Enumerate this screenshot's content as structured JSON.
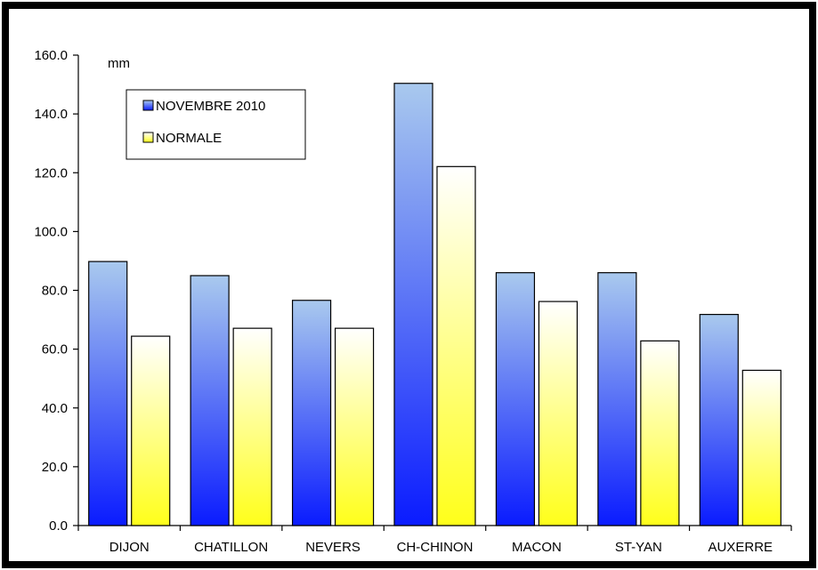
{
  "chart_data": {
    "type": "bar",
    "ylabel": "mm",
    "ylim": [
      0,
      160
    ],
    "yticks": [
      "0.0",
      "20.0",
      "40.0",
      "60.0",
      "80.0",
      "100.0",
      "120.0",
      "140.0",
      "160.0"
    ],
    "categories": [
      "DIJON",
      "CHATILLON",
      "NEVERS",
      "CH-CHINON",
      "MACON",
      "ST-YAN",
      "AUXERRE"
    ],
    "series": [
      {
        "name": "NOVEMBRE 2010",
        "values": [
          89.8,
          85.0,
          76.6,
          150.4,
          86.0,
          86.0,
          71.8
        ]
      },
      {
        "name": "NORMALE",
        "values": [
          64.4,
          67.1,
          67.1,
          122.1,
          76.2,
          62.8,
          52.8
        ]
      }
    ],
    "legend_position": "top-left",
    "grid": false,
    "colors": {
      "novembre_top": "#a9c9ee",
      "novembre_bottom": "#0a1bff",
      "normale_top": "#ffffff",
      "normale_bottom": "#ffff1a",
      "frame": "#000000"
    }
  }
}
